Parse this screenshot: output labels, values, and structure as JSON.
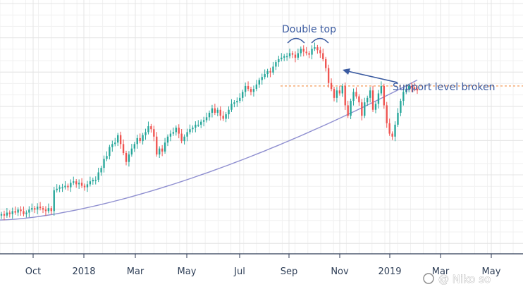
{
  "chart_data": {
    "type": "candlestick",
    "x_axis": {
      "tick_labels": [
        "Oct",
        "2018",
        "Mar",
        "May",
        "Jul",
        "Sep",
        "Nov",
        "2019",
        "Mar",
        "May"
      ]
    },
    "y_axis": {
      "ylim": [
        0,
        100
      ],
      "tick_labels": []
    },
    "grid": true,
    "colors": {
      "up": "#26a69a",
      "down": "#ef5350",
      "moving_average": "#8f8fd0",
      "support_line": "#f5a66a",
      "annotation": "#3a5aa0",
      "axis": "#2c3a55",
      "grid": "#e4e4e4"
    },
    "candles_close": [
      12,
      11,
      13,
      12,
      14,
      13,
      15,
      14,
      12,
      13,
      15,
      16,
      15,
      17,
      16,
      15,
      14,
      16,
      14,
      28,
      29,
      30,
      30,
      31,
      30,
      33,
      34,
      32,
      33,
      31,
      30,
      32,
      34,
      35,
      35,
      40,
      43,
      49,
      51,
      57,
      59,
      60,
      65,
      59,
      53,
      47,
      52,
      56,
      59,
      63,
      61,
      65,
      67,
      71,
      69,
      64,
      52,
      56,
      54,
      60,
      64,
      66,
      67,
      70,
      66,
      61,
      64,
      67,
      69,
      70,
      72,
      72,
      74,
      75,
      77,
      80,
      83,
      80,
      82,
      78,
      76,
      79,
      82,
      86,
      87,
      88,
      90,
      94,
      98,
      96,
      94,
      96,
      99,
      102,
      104,
      106,
      108,
      107,
      111,
      114,
      116,
      117,
      118,
      118,
      120,
      119,
      117,
      120,
      123,
      121,
      120,
      119,
      123,
      124,
      122,
      120,
      116,
      110,
      100,
      96,
      90,
      95,
      93,
      98,
      85,
      78,
      88,
      94,
      91,
      87,
      78,
      87,
      90,
      95,
      82,
      86,
      93,
      98,
      85,
      73,
      66,
      64,
      72,
      80,
      88,
      94,
      96,
      98,
      97,
      96,
      95
    ],
    "moving_average": {
      "start": 8,
      "end": 102
    },
    "support_level": 98,
    "annotations": {
      "double_top": "Double top",
      "support_broken": "Support level broken"
    },
    "watermark": "@ Niko so"
  }
}
